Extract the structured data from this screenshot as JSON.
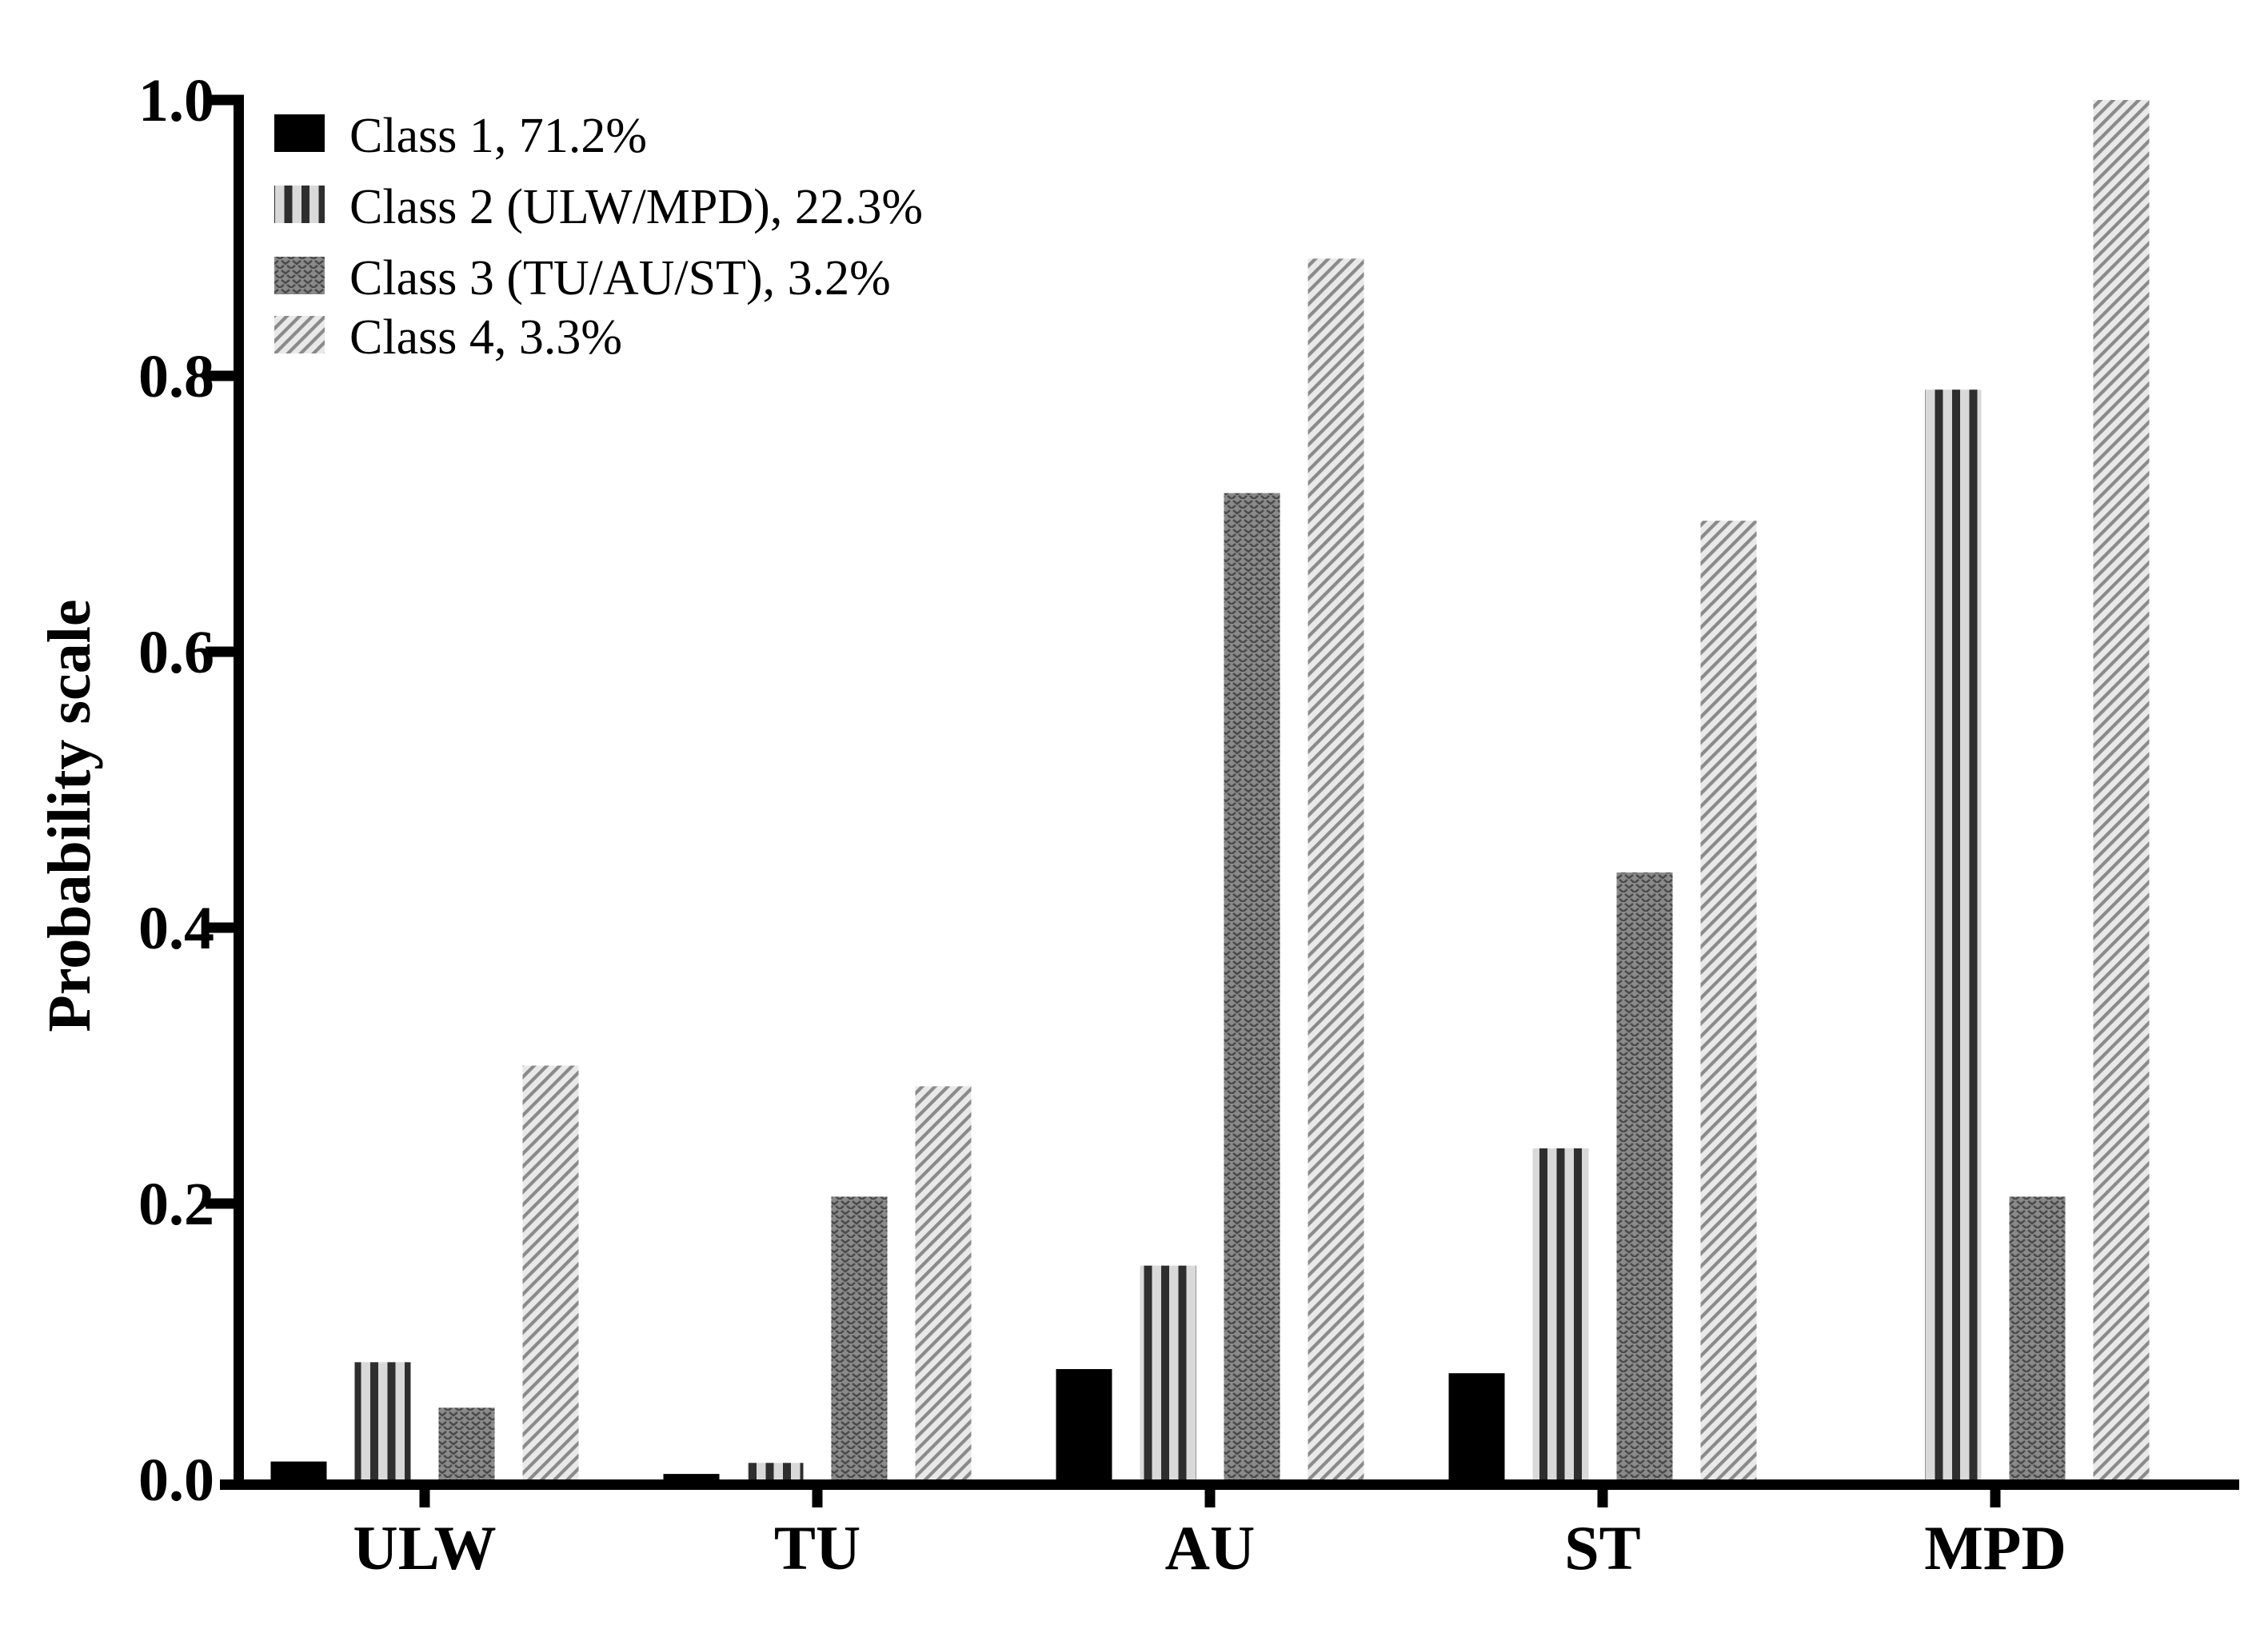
{
  "figure": {
    "background": "#ffffff"
  },
  "chart_data": {
    "type": "bar",
    "title": "",
    "xlabel": "",
    "ylabel": "Probability scale",
    "categories": [
      "ULW",
      "TU",
      "AU",
      "ST",
      "MPD"
    ],
    "series": [
      {
        "name": "Class 1, 71.2%",
        "pattern": "solid-black",
        "values": [
          0.013,
          0.004,
          0.08,
          0.077,
          0
        ]
      },
      {
        "name": "Class 2 (ULW/MPD), 22.3%",
        "pattern": "vertical-stripes",
        "values": [
          0.085,
          0.012,
          0.155,
          0.24,
          0.79
        ]
      },
      {
        "name": "Class 3 (TU/AU/ST), 3.2%",
        "pattern": "chevron-texture",
        "values": [
          0.052,
          0.205,
          0.715,
          0.44,
          0.205
        ]
      },
      {
        "name": "Class 4, 3.3%",
        "pattern": "diagonal-stripes",
        "values": [
          0.3,
          0.285,
          0.885,
          0.695,
          1.0
        ]
      }
    ],
    "ylim": [
      0,
      1.0
    ],
    "yticks": [
      0.0,
      0.2,
      0.4,
      0.6,
      0.8,
      1.0
    ],
    "ytick_labels": [
      "0.0",
      "0.2",
      "0.4",
      "0.6",
      "0.8",
      "1.0"
    ],
    "grid": false,
    "legend_position": "top-left"
  },
  "colors": {
    "background": "#ffffff",
    "axis": "#000000",
    "text": "#000000",
    "class1_fill": "#000000",
    "class2_bg": "#d9d9d9",
    "class2_stripe": "#2e2e2e",
    "class3_bg": "#8a8a8a",
    "class3_mark": "#4a4a4a",
    "class4_bg": "#e9e9e9",
    "class4_stripe": "#8a8a8a"
  }
}
